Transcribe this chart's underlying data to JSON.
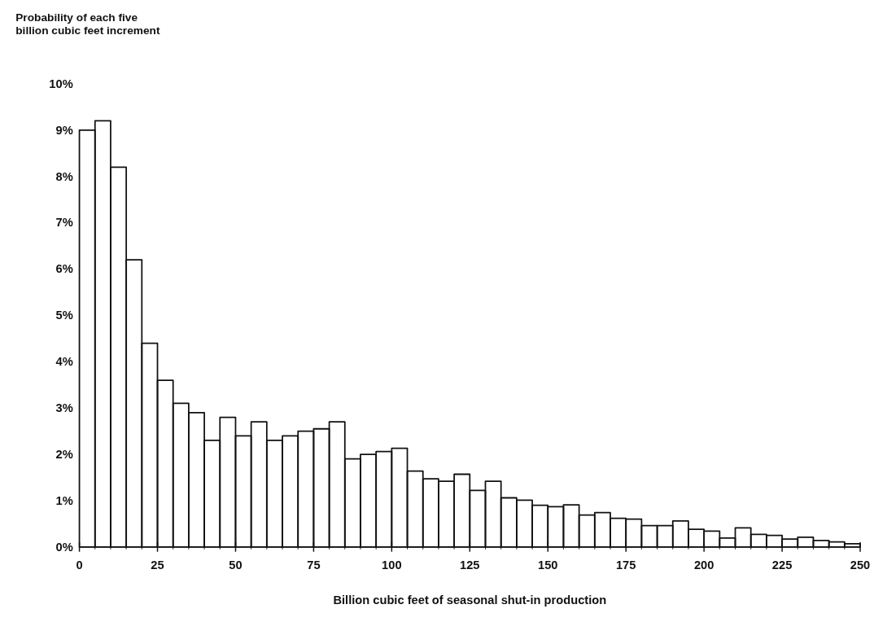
{
  "chart_data": {
    "type": "histogram",
    "ylabel": "Probability of each five\nbillion cubic feet increment",
    "xlabel": "Billion cubic feet of seasonal shut-in production",
    "color": "#111111",
    "bins": [
      0,
      5,
      10,
      15,
      20,
      25,
      30,
      35,
      40,
      45,
      50,
      55,
      60,
      65,
      70,
      75,
      80,
      85,
      90,
      95,
      100,
      105,
      110,
      115,
      120,
      125,
      130,
      135,
      140,
      145,
      150,
      155,
      160,
      165,
      170,
      175,
      180,
      185,
      190,
      195,
      200,
      205,
      210,
      215,
      220,
      225,
      230,
      235,
      240,
      245,
      250
    ],
    "values": [
      9.0,
      9.2,
      8.2,
      6.2,
      4.4,
      3.6,
      3.1,
      2.9,
      2.3,
      2.8,
      2.4,
      2.7,
      2.3,
      2.4,
      2.5,
      2.55,
      2.7,
      1.9,
      2.0,
      2.06,
      2.13,
      1.64,
      1.47,
      1.42,
      1.57,
      1.22,
      1.42,
      1.06,
      1.01,
      0.9,
      0.87,
      0.91,
      0.69,
      0.74,
      0.62,
      0.6,
      0.46,
      0.46,
      0.56,
      0.38,
      0.34,
      0.19,
      0.41,
      0.27,
      0.25,
      0.17,
      0.21,
      0.14,
      0.11,
      0.07
    ],
    "xlim": [
      0,
      250
    ],
    "ylim": [
      0,
      10
    ],
    "xticks": [
      0,
      {
        "value": 5,
        "label": null
      },
      {
        "value": 10,
        "label": null
      },
      {
        "value": 15,
        "label": null
      },
      {
        "value": 20,
        "label": null
      },
      25,
      {
        "value": 30,
        "label": null
      },
      {
        "value": 35,
        "label": null
      },
      {
        "value": 40,
        "label": null
      },
      {
        "value": 45,
        "label": null
      },
      50,
      {
        "value": 55,
        "label": null
      },
      {
        "value": 60,
        "label": null
      },
      {
        "value": 65,
        "label": null
      },
      {
        "value": 70,
        "label": null
      },
      75,
      {
        "value": 80,
        "label": null
      },
      {
        "value": 85,
        "label": null
      },
      {
        "value": 90,
        "label": null
      },
      {
        "value": 95,
        "label": null
      },
      100,
      {
        "value": 105,
        "label": null
      },
      {
        "value": 110,
        "label": null
      },
      {
        "value": 115,
        "label": null
      },
      {
        "value": 120,
        "label": null
      },
      125,
      {
        "value": 130,
        "label": null
      },
      {
        "value": 135,
        "label": null
      },
      {
        "value": 140,
        "label": null
      },
      {
        "value": 145,
        "label": null
      },
      150,
      {
        "value": 155,
        "label": null
      },
      {
        "value": 160,
        "label": null
      },
      {
        "value": 165,
        "label": null
      },
      {
        "value": 170,
        "label": null
      },
      175,
      {
        "value": 180,
        "label": null
      },
      {
        "value": 185,
        "label": null
      },
      {
        "value": 190,
        "label": null
      },
      {
        "value": 195,
        "label": null
      },
      200,
      {
        "value": 205,
        "label": null
      },
      {
        "value": 210,
        "label": null
      },
      {
        "value": 215,
        "label": null
      },
      {
        "value": 220,
        "label": null
      },
      225,
      {
        "value": 230,
        "label": null
      },
      {
        "value": 235,
        "label": null
      },
      {
        "value": 240,
        "label": null
      },
      {
        "value": 245,
        "label": null
      },
      250
    ],
    "yticks": [
      {
        "value": 0,
        "label": "0%"
      },
      {
        "value": 1,
        "label": "1%"
      },
      {
        "value": 2,
        "label": "2%"
      },
      {
        "value": 3,
        "label": "3%"
      },
      {
        "value": 4,
        "label": "4%"
      },
      {
        "value": 5,
        "label": "5%"
      },
      {
        "value": 6,
        "label": "6%"
      },
      {
        "value": 7,
        "label": "7%"
      },
      {
        "value": 8,
        "label": "8%"
      },
      {
        "value": 9,
        "label": "9%"
      },
      {
        "value": 10,
        "label": "10%"
      }
    ],
    "tick_labels": "xy"
  }
}
